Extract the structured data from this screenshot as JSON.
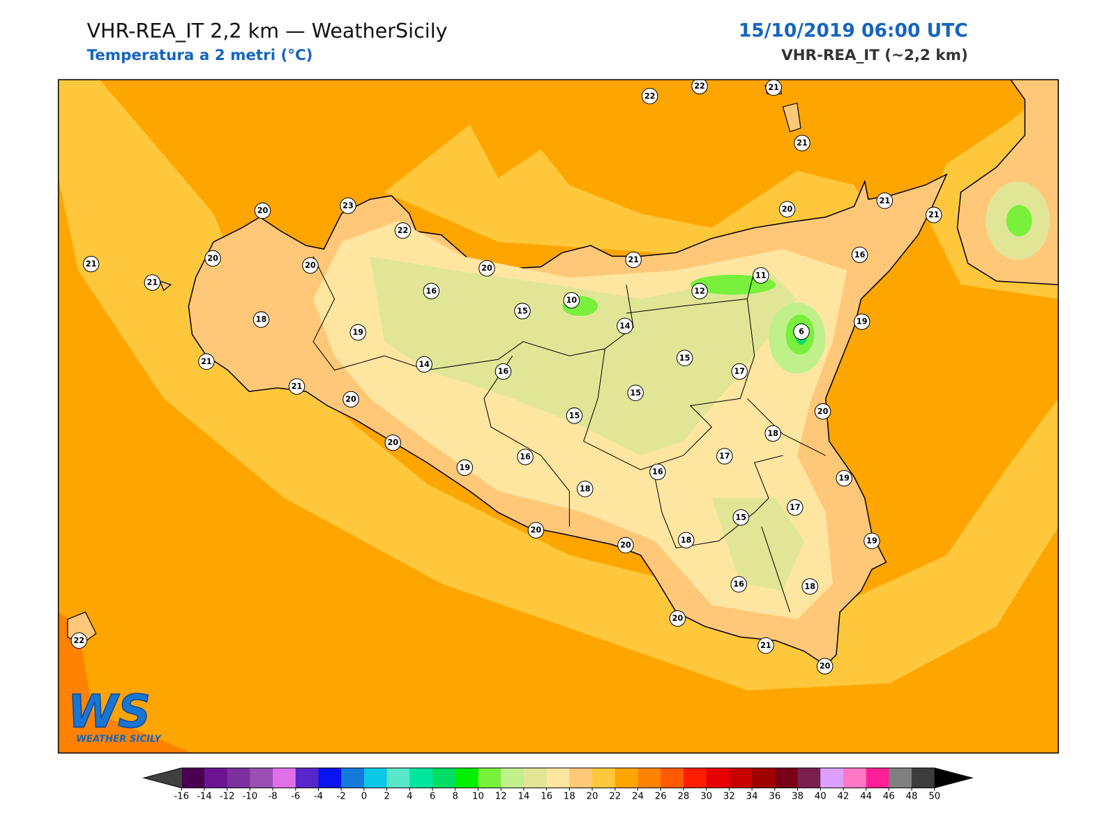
{
  "header": {
    "title": "VHR-REA_IT 2,2 km — WeatherSicily",
    "subtitle": "Temperatura a 2 metri (°C)",
    "date": "15/10/2019 06:00 UTC",
    "model": "VHR-REA_IT (~2,2 km)"
  },
  "stations": [
    22,
    22,
    21,
    21,
    20,
    23,
    22,
    21,
    20,
    20,
    21,
    20,
    21,
    20,
    21,
    21,
    16,
    11,
    12,
    10,
    16,
    15,
    14,
    6,
    19,
    18,
    19,
    21,
    21,
    14,
    16,
    15,
    17,
    15,
    20,
    15,
    20,
    18,
    20,
    16,
    17,
    16,
    19,
    19,
    18,
    17,
    15,
    20,
    20,
    18,
    19,
    16,
    18,
    20,
    21,
    20,
    22
  ],
  "logo": {
    "mark": "WS",
    "name": "WEATHER SICILY"
  },
  "colorbar": {
    "ticks": [
      -16,
      -14,
      -12,
      -10,
      -8,
      -6,
      -4,
      -2,
      0,
      2,
      4,
      6,
      8,
      10,
      12,
      14,
      16,
      18,
      20,
      22,
      24,
      26,
      28,
      30,
      32,
      34,
      36,
      38,
      40,
      42,
      44,
      46,
      48,
      50
    ],
    "colors": [
      "#4a0050",
      "#6a1490",
      "#7d2fa0",
      "#9a4fb4",
      "#e070e8",
      "#5a25c8",
      "#0a14f0",
      "#1478dc",
      "#0ac8e6",
      "#5ae6c8",
      "#00e6a0",
      "#00dc64",
      "#00f000",
      "#78f03c",
      "#c0f08c",
      "#e1e696",
      "#ffe6a0",
      "#ffc878",
      "#ffc83c",
      "#ffa500",
      "#ff8200",
      "#ff5a00",
      "#ff1e00",
      "#e60000",
      "#c80000",
      "#a00000",
      "#7a0018",
      "#7a2050",
      "#dca0ff",
      "#ff78c8",
      "#ff1e96",
      "#808080",
      "#3c3c3c"
    ],
    "under": "#404040",
    "over": "#000000"
  }
}
